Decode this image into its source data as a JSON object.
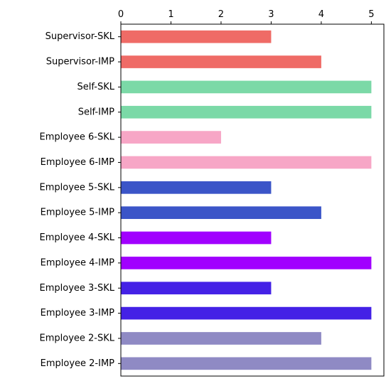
{
  "chart_data": {
    "type": "bar",
    "orientation": "horizontal",
    "categories": [
      "Supervisor-SKL",
      "Supervisor-IMP",
      "Self-SKL",
      "Self-IMP",
      "Employee 6-SKL",
      "Employee 6-IMP",
      "Employee 5-SKL",
      "Employee 5-IMP",
      "Employee 4-SKL",
      "Employee 4-IMP",
      "Employee 3-SKL",
      "Employee 3-IMP",
      "Employee 2-SKL",
      "Employee 2-IMP"
    ],
    "values": [
      3,
      4,
      5,
      5,
      2,
      5,
      3,
      4,
      3,
      5,
      3,
      5,
      4,
      5
    ],
    "colors": [
      "#ef6b66",
      "#ef6b66",
      "#7bd9a7",
      "#7bd9a7",
      "#f7a6c6",
      "#f7a6c6",
      "#3b55c8",
      "#3b55c8",
      "#a100ff",
      "#a100ff",
      "#4421e6",
      "#4421e6",
      "#8f8ac4",
      "#8f8ac4"
    ],
    "title": "",
    "xlabel": "",
    "ylabel": "",
    "xlim": [
      0,
      5.25
    ],
    "xticks": [
      "0",
      "1",
      "2",
      "3",
      "4",
      "5"
    ],
    "x_axis_position": "top",
    "grid": false,
    "legend": "none"
  }
}
